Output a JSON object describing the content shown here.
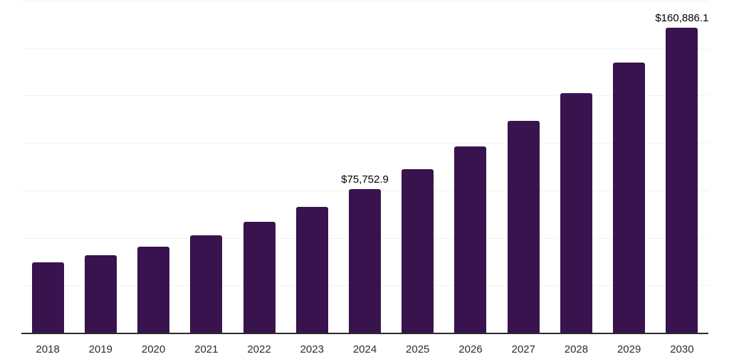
{
  "chart_data": {
    "type": "bar",
    "title": "",
    "xlabel": "",
    "ylabel": "",
    "categories": [
      "2018",
      "2019",
      "2020",
      "2021",
      "2022",
      "2023",
      "2024",
      "2025",
      "2026",
      "2027",
      "2028",
      "2029",
      "2030"
    ],
    "values": [
      37100,
      41000,
      45500,
      51500,
      58600,
      66400,
      75752.9,
      86200,
      98200,
      111600,
      126200,
      142500,
      160886.1
    ],
    "labels": {
      "2024": "$75,752.9",
      "2030": "$160,886.1"
    },
    "ylim": [
      0,
      175000
    ],
    "grid_step": 25000,
    "grid": true,
    "legend": false,
    "colors": {
      "bar": "#38134E",
      "gridline": "#F2F2F2",
      "axis": "#2B2B2B",
      "data_label": "#000000",
      "tick_label": "#2B2B2B",
      "background": "#FFFFFF"
    }
  }
}
